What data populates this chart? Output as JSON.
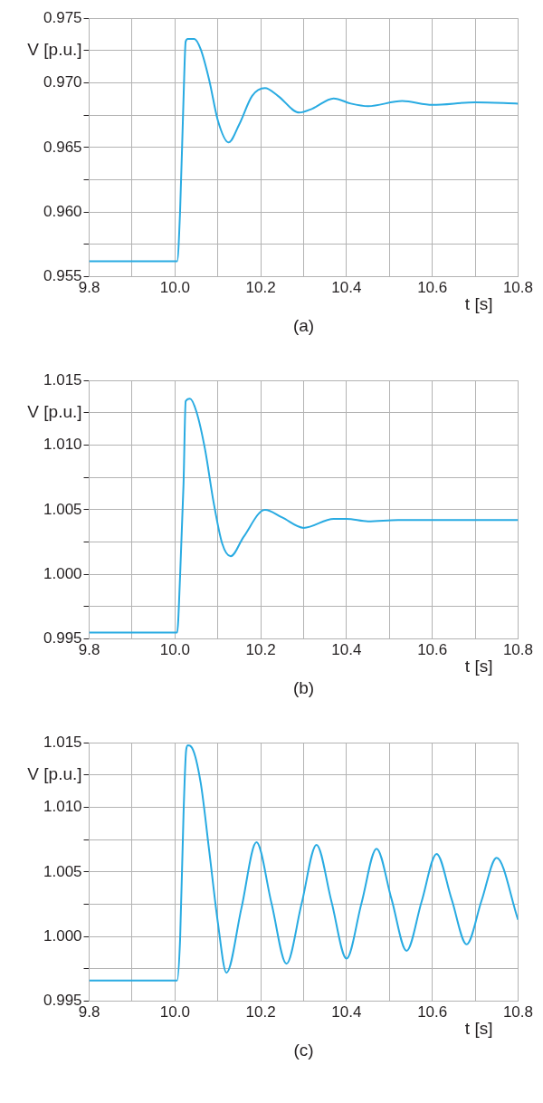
{
  "chart_data": [
    {
      "type": "line",
      "xlabel": "t [s]",
      "ylabel": "V [p.u.]",
      "annotations": [
        "(a)"
      ],
      "grid": true,
      "x": [
        9.8,
        10.0,
        10.005,
        10.012,
        10.02,
        10.025,
        10.03,
        10.045,
        10.06,
        10.08,
        10.1,
        10.125,
        10.15,
        10.18,
        10.21,
        10.24,
        10.29,
        10.32,
        10.37,
        10.41,
        10.45,
        10.53,
        10.6,
        10.7,
        10.8
      ],
      "series": [
        {
          "color": "#29abe2",
          "values": [
            0.9562,
            0.9562,
            0.9562,
            0.9601,
            0.9688,
            0.9732,
            0.9734,
            0.9734,
            0.9726,
            0.9702,
            0.9671,
            0.9654,
            0.9668,
            0.969,
            0.9696,
            0.969,
            0.9677,
            0.968,
            0.9688,
            0.9684,
            0.9682,
            0.9686,
            0.9683,
            0.9685,
            0.9684
          ]
        }
      ],
      "xlim": [
        9.8,
        10.8
      ],
      "ylim": [
        0.955,
        0.975
      ],
      "xticks": [
        {
          "value": 9.8,
          "label": "9.8"
        },
        {
          "value": 9.9,
          "label": null
        },
        {
          "value": 10,
          "label": "10.0"
        },
        {
          "value": 10.1,
          "label": null
        },
        {
          "value": 10.2,
          "label": "10.2"
        },
        {
          "value": 10.3,
          "label": null
        },
        {
          "value": 10.4,
          "label": "10.4"
        },
        {
          "value": 10.5,
          "label": null
        },
        {
          "value": 10.6,
          "label": "10.6"
        },
        {
          "value": 10.7,
          "label": null
        },
        {
          "value": 10.8,
          "label": "10.8"
        }
      ],
      "yticks": [
        {
          "value": 0.955,
          "label": "0.955"
        },
        {
          "value": 0.9575,
          "label": null
        },
        {
          "value": 0.96,
          "label": "0.960"
        },
        {
          "value": 0.9625,
          "label": null
        },
        {
          "value": 0.965,
          "label": "0.965"
        },
        {
          "value": 0.9675,
          "label": null
        },
        {
          "value": 0.97,
          "label": "0.970"
        },
        {
          "value": 0.9725,
          "label": null
        },
        {
          "value": 0.975,
          "label": "0.975"
        }
      ]
    },
    {
      "type": "line",
      "xlabel": "t [s]",
      "ylabel": "V [p.u.]",
      "annotations": [
        "(b)"
      ],
      "grid": true,
      "x": [
        9.8,
        10.0,
        10.005,
        10.012,
        10.02,
        10.025,
        10.035,
        10.05,
        10.07,
        10.09,
        10.11,
        10.13,
        10.16,
        10.21,
        10.25,
        10.3,
        10.37,
        10.4,
        10.45,
        10.52,
        10.8
      ],
      "series": [
        {
          "color": "#29abe2",
          "values": [
            0.9955,
            0.9955,
            0.9955,
            0.9999,
            1.007,
            1.0134,
            1.0136,
            1.0126,
            1.0097,
            1.0056,
            1.0024,
            1.0014,
            1.0029,
            1.005,
            1.0044,
            1.0036,
            1.0043,
            1.0043,
            1.0041,
            1.0042,
            1.0042
          ]
        }
      ],
      "xlim": [
        9.8,
        10.8
      ],
      "ylim": [
        0.995,
        1.015
      ],
      "xticks": [
        {
          "value": 9.8,
          "label": "9.8"
        },
        {
          "value": 9.9,
          "label": null
        },
        {
          "value": 10,
          "label": "10.0"
        },
        {
          "value": 10.1,
          "label": null
        },
        {
          "value": 10.2,
          "label": "10.2"
        },
        {
          "value": 10.3,
          "label": null
        },
        {
          "value": 10.4,
          "label": "10.4"
        },
        {
          "value": 10.5,
          "label": null
        },
        {
          "value": 10.6,
          "label": "10.6"
        },
        {
          "value": 10.7,
          "label": null
        },
        {
          "value": 10.8,
          "label": "10.8"
        }
      ],
      "yticks": [
        {
          "value": 0.995,
          "label": "0.995"
        },
        {
          "value": 0.9975,
          "label": null
        },
        {
          "value": 1,
          "label": "1.000"
        },
        {
          "value": 1.0025,
          "label": null
        },
        {
          "value": 1.005,
          "label": "1.005"
        },
        {
          "value": 1.0075,
          "label": null
        },
        {
          "value": 1.01,
          "label": "1.010"
        },
        {
          "value": 1.0125,
          "label": null
        },
        {
          "value": 1.015,
          "label": "1.015"
        }
      ]
    },
    {
      "type": "line",
      "xlabel": "t [s]",
      "ylabel": "V [p.u.]",
      "annotations": [
        "(c)"
      ],
      "grid": true,
      "x": [
        9.8,
        10.0,
        10.005,
        10.012,
        10.02,
        10.026,
        10.03,
        10.04,
        10.06,
        10.08,
        10.1,
        10.12,
        10.155,
        10.19,
        10.225,
        10.26,
        10.295,
        10.33,
        10.365,
        10.4,
        10.435,
        10.47,
        10.505,
        10.54,
        10.575,
        10.61,
        10.645,
        10.68,
        10.715,
        10.75,
        10.8
      ],
      "series": [
        {
          "color": "#29abe2",
          "values": [
            0.9966,
            0.9966,
            0.9966,
            0.9998,
            1.0095,
            1.0144,
            1.0148,
            1.0146,
            1.0119,
            1.0066,
            1.0011,
            0.9972,
            1.0022,
            1.0073,
            1.0026,
            0.9979,
            1.0025,
            1.0071,
            1.0027,
            0.9983,
            1.0026,
            1.0068,
            1.0029,
            0.9989,
            1.0027,
            1.0064,
            1.0029,
            0.9994,
            1.0028,
            1.0061,
            1.0013
          ]
        }
      ],
      "xlim": [
        9.8,
        10.8
      ],
      "ylim": [
        0.995,
        1.015
      ],
      "xticks": [
        {
          "value": 9.8,
          "label": "9.8"
        },
        {
          "value": 9.9,
          "label": null
        },
        {
          "value": 10,
          "label": "10.0"
        },
        {
          "value": 10.1,
          "label": null
        },
        {
          "value": 10.2,
          "label": "10.2"
        },
        {
          "value": 10.3,
          "label": null
        },
        {
          "value": 10.4,
          "label": "10.4"
        },
        {
          "value": 10.5,
          "label": null
        },
        {
          "value": 10.6,
          "label": "10.6"
        },
        {
          "value": 10.7,
          "label": null
        },
        {
          "value": 10.8,
          "label": "10.8"
        }
      ],
      "yticks": [
        {
          "value": 0.995,
          "label": "0.995"
        },
        {
          "value": 0.9975,
          "label": null
        },
        {
          "value": 1,
          "label": "1.000"
        },
        {
          "value": 1.0025,
          "label": null
        },
        {
          "value": 1.005,
          "label": "1.005"
        },
        {
          "value": 1.0075,
          "label": null
        },
        {
          "value": 1.01,
          "label": "1.010"
        },
        {
          "value": 1.0125,
          "label": null
        },
        {
          "value": 1.015,
          "label": "1.015"
        }
      ]
    }
  ]
}
